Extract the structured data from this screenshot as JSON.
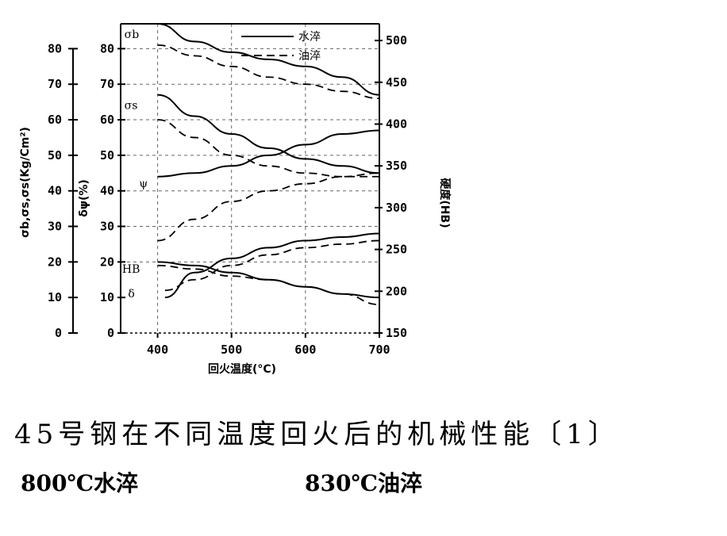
{
  "chart_data": {
    "type": "line",
    "xlabel": "回火温度(°C)",
    "x_ticks": [
      "400",
      "500",
      "600",
      "700"
    ],
    "xlim": [
      350,
      700
    ],
    "ylabel_left": "σb,σs,σs(Kg/Cm²)",
    "ylabel_left2": "δψ(%)",
    "y_ticks_left": [
      "0",
      "10",
      "20",
      "30",
      "40",
      "50",
      "60",
      "70",
      "80"
    ],
    "y_ticks_inner": [
      "0",
      "10",
      "20",
      "30",
      "40",
      "50",
      "60",
      "70",
      "80"
    ],
    "ylim_left": [
      0,
      87
    ],
    "ylabel_right": "硬度(HB)",
    "y_ticks_right": [
      "150",
      "200",
      "250",
      "300",
      "350",
      "400",
      "450",
      "500"
    ],
    "ylim_right": [
      150,
      520
    ],
    "legend": [
      {
        "label": "水淬",
        "style": "solid"
      },
      {
        "label": "油淬",
        "style": "dashed"
      }
    ],
    "curve_labels": [
      "σb",
      "σs",
      "ψ",
      "HB",
      "δ"
    ],
    "series": [
      {
        "name": "σb",
        "quench": "水淬",
        "x": [
          400,
          450,
          500,
          550,
          600,
          650,
          700
        ],
        "y": [
          87,
          82,
          79,
          77,
          75,
          72,
          67
        ]
      },
      {
        "name": "σb",
        "quench": "油淬",
        "x": [
          400,
          450,
          500,
          550,
          600,
          650,
          700
        ],
        "y": [
          81,
          78,
          75,
          72,
          70,
          68,
          66
        ]
      },
      {
        "name": "σs",
        "quench": "水淬",
        "x": [
          400,
          450,
          500,
          550,
          600,
          650,
          700
        ],
        "y": [
          67,
          61,
          56,
          52,
          49,
          47,
          45
        ]
      },
      {
        "name": "σs",
        "quench": "油淬",
        "x": [
          400,
          450,
          500,
          550,
          600,
          650,
          700
        ],
        "y": [
          60,
          55,
          50,
          47,
          45,
          44,
          44
        ]
      },
      {
        "name": "ψ",
        "quench": "水淬",
        "x": [
          400,
          450,
          500,
          550,
          600,
          650,
          700
        ],
        "y": [
          44,
          45,
          47,
          50,
          53,
          56,
          57
        ]
      },
      {
        "name": "ψ",
        "quench": "油淬",
        "x": [
          400,
          450,
          500,
          550,
          600,
          650,
          700
        ],
        "y": [
          26,
          32,
          37,
          40,
          42,
          44,
          45
        ]
      },
      {
        "name": "HB",
        "quench": "水淬",
        "x": [
          400,
          450,
          500,
          550,
          600,
          650,
          700
        ],
        "y": [
          20,
          19,
          17,
          15,
          13,
          11,
          10
        ]
      },
      {
        "name": "HB",
        "quench": "油淬",
        "x": [
          400,
          450,
          500,
          550,
          600,
          650,
          700
        ],
        "y": [
          19,
          18,
          16,
          15,
          13,
          11,
          8
        ]
      },
      {
        "name": "δ",
        "quench": "水淬",
        "x": [
          410,
          450,
          500,
          550,
          600,
          650,
          700
        ],
        "y": [
          10,
          17,
          21,
          24,
          26,
          27,
          28
        ]
      },
      {
        "name": "δ",
        "quench": "油淬",
        "x": [
          410,
          450,
          500,
          550,
          600,
          650,
          700
        ],
        "y": [
          12,
          15,
          19,
          22,
          24,
          25,
          26
        ]
      }
    ]
  },
  "caption": "45号钢在不同温度回火后的机械性能〔1〕",
  "conditions": [
    "800℃水淬",
    "830℃油淬"
  ]
}
